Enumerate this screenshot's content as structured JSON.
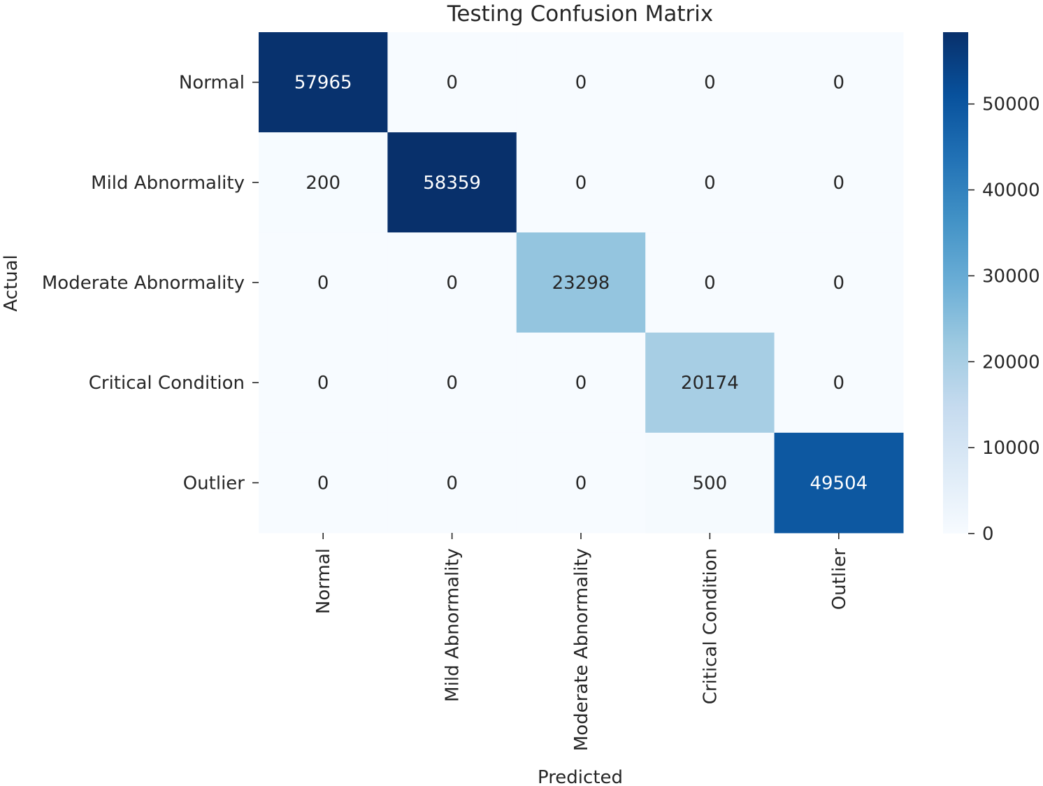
{
  "chart_data": {
    "type": "heatmap",
    "title": "Testing Confusion Matrix",
    "xlabel": "Predicted",
    "ylabel": "Actual",
    "x_categories": [
      "Normal",
      "Mild Abnormality",
      "Moderate Abnormality",
      "Critical Condition",
      "Outlier"
    ],
    "y_categories": [
      "Normal",
      "Mild Abnormality",
      "Moderate Abnormality",
      "Critical Condition",
      "Outlier"
    ],
    "values": [
      [
        57965,
        0,
        0,
        0,
        0
      ],
      [
        200,
        58359,
        0,
        0,
        0
      ],
      [
        0,
        0,
        23298,
        0,
        0
      ],
      [
        0,
        0,
        0,
        20174,
        0
      ],
      [
        0,
        0,
        0,
        500,
        49504
      ]
    ],
    "colormap": "Blues",
    "colorbar": {
      "range": [
        0,
        58359
      ],
      "ticks": [
        0,
        10000,
        20000,
        30000,
        40000,
        50000
      ],
      "tick_labels": [
        "0",
        "10000",
        "20000",
        "30000",
        "40000",
        "50000"
      ]
    },
    "colors": {
      "low": "#f7fbff",
      "high": "#08306b",
      "text_dark": "#262626",
      "text_light": "#ffffff"
    }
  }
}
